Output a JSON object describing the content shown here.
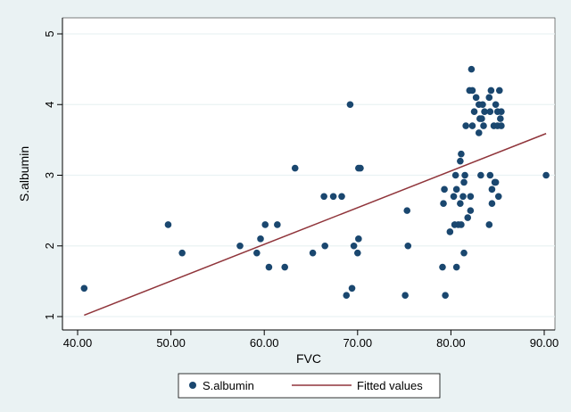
{
  "chart_data": {
    "type": "scatter",
    "title": "",
    "xlabel": "FVC",
    "ylabel": "S.albumin",
    "xlim": [
      40,
      90
    ],
    "ylim": [
      1,
      5
    ],
    "x_ticks": [
      40,
      50,
      60,
      70,
      80,
      90
    ],
    "x_tick_labels": [
      "40.00",
      "50.00",
      "60.00",
      "70.00",
      "80.00",
      "90.00"
    ],
    "y_ticks": [
      1,
      2,
      3,
      4,
      5
    ],
    "y_tick_labels": [
      "1",
      "2",
      "3",
      "4",
      "5"
    ],
    "grid": "horizontal",
    "legend_position": "bottom",
    "series": [
      {
        "name": "S.albumin",
        "kind": "scatter",
        "color": "#1a476f",
        "points": [
          [
            40.7,
            1.4
          ],
          [
            49.7,
            2.3
          ],
          [
            51.2,
            1.9
          ],
          [
            57.4,
            2.0
          ],
          [
            59.2,
            1.9
          ],
          [
            59.6,
            2.1
          ],
          [
            60.1,
            2.3
          ],
          [
            60.5,
            1.7
          ],
          [
            61.4,
            2.3
          ],
          [
            62.2,
            1.7
          ],
          [
            63.3,
            3.1
          ],
          [
            65.2,
            1.9
          ],
          [
            66.4,
            2.7
          ],
          [
            66.5,
            2.0
          ],
          [
            67.4,
            2.7
          ],
          [
            68.3,
            2.7
          ],
          [
            68.8,
            1.3
          ],
          [
            69.2,
            4.0
          ],
          [
            69.4,
            1.4
          ],
          [
            69.6,
            2.0
          ],
          [
            70.0,
            1.9
          ],
          [
            70.1,
            2.1
          ],
          [
            70.1,
            3.1
          ],
          [
            70.3,
            3.1
          ],
          [
            75.1,
            1.3
          ],
          [
            75.3,
            2.5
          ],
          [
            75.4,
            2.0
          ],
          [
            79.1,
            1.7
          ],
          [
            79.2,
            2.6
          ],
          [
            79.3,
            2.8
          ],
          [
            79.4,
            1.3
          ],
          [
            79.9,
            2.2
          ],
          [
            80.3,
            2.7
          ],
          [
            80.4,
            2.3
          ],
          [
            80.5,
            3.0
          ],
          [
            80.6,
            1.7
          ],
          [
            80.6,
            2.8
          ],
          [
            80.8,
            2.3
          ],
          [
            81.0,
            2.6
          ],
          [
            81.0,
            3.2
          ],
          [
            81.1,
            3.3
          ],
          [
            81.1,
            2.3
          ],
          [
            81.3,
            2.7
          ],
          [
            81.4,
            1.9
          ],
          [
            81.4,
            2.9
          ],
          [
            81.5,
            3.0
          ],
          [
            81.6,
            3.7
          ],
          [
            81.8,
            2.4
          ],
          [
            82.0,
            4.2
          ],
          [
            82.1,
            2.7
          ],
          [
            82.1,
            2.5
          ],
          [
            82.2,
            4.5
          ],
          [
            82.3,
            4.2
          ],
          [
            82.3,
            3.7
          ],
          [
            82.5,
            3.9
          ],
          [
            82.7,
            4.1
          ],
          [
            83.0,
            4.0
          ],
          [
            83.0,
            3.6
          ],
          [
            83.1,
            3.8
          ],
          [
            83.2,
            3.0
          ],
          [
            83.3,
            3.8
          ],
          [
            83.4,
            4.0
          ],
          [
            83.5,
            3.7
          ],
          [
            83.6,
            3.9
          ],
          [
            84.1,
            4.1
          ],
          [
            84.1,
            2.3
          ],
          [
            84.2,
            3.9
          ],
          [
            84.2,
            3.0
          ],
          [
            84.3,
            4.2
          ],
          [
            84.4,
            2.6
          ],
          [
            84.4,
            2.8
          ],
          [
            84.6,
            3.7
          ],
          [
            84.7,
            2.9
          ],
          [
            84.8,
            4.0
          ],
          [
            84.8,
            2.9
          ],
          [
            85.0,
            3.7
          ],
          [
            85.0,
            3.9
          ],
          [
            85.1,
            2.7
          ],
          [
            85.2,
            4.2
          ],
          [
            85.3,
            3.8
          ],
          [
            85.4,
            3.7
          ],
          [
            85.4,
            3.9
          ],
          [
            90.2,
            3.0
          ]
        ]
      },
      {
        "name": "Fitted values",
        "kind": "line",
        "color": "#90353b",
        "points": [
          [
            40.7,
            1.02
          ],
          [
            90.2,
            3.59
          ]
        ]
      }
    ]
  }
}
